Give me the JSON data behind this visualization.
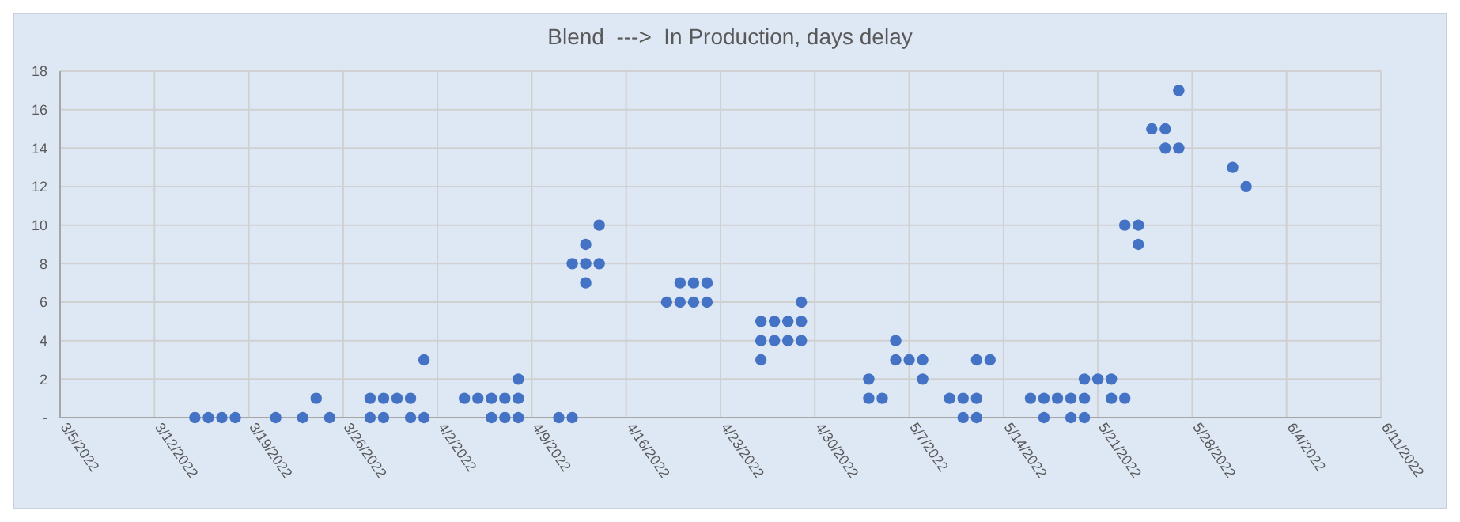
{
  "chart_data": {
    "type": "scatter",
    "title": "Blend  --->  In Production, days delay",
    "series": [
      {
        "color": "#4472c4",
        "x": [
          "2022-03-15",
          "2022-03-16",
          "2022-03-17",
          "2022-03-18",
          "2022-03-21",
          "2022-03-23",
          "2022-03-24",
          "2022-03-25",
          "2022-03-28",
          "2022-03-28",
          "2022-03-29",
          "2022-03-29",
          "2022-03-30",
          "2022-03-31",
          "2022-03-31",
          "2022-04-01",
          "2022-04-01",
          "2022-04-04",
          "2022-04-05",
          "2022-04-06",
          "2022-04-06",
          "2022-04-07",
          "2022-04-07",
          "2022-04-08",
          "2022-04-08",
          "2022-04-08",
          "2022-04-11",
          "2022-04-12",
          "2022-04-12",
          "2022-04-13",
          "2022-04-13",
          "2022-04-13",
          "2022-04-14",
          "2022-04-14",
          "2022-04-19",
          "2022-04-20",
          "2022-04-20",
          "2022-04-21",
          "2022-04-21",
          "2022-04-22",
          "2022-04-22",
          "2022-04-26",
          "2022-04-26",
          "2022-04-26",
          "2022-04-27",
          "2022-04-27",
          "2022-04-28",
          "2022-04-28",
          "2022-04-29",
          "2022-04-29",
          "2022-04-29",
          "2022-05-04",
          "2022-05-04",
          "2022-05-05",
          "2022-05-06",
          "2022-05-06",
          "2022-05-07",
          "2022-05-08",
          "2022-05-08",
          "2022-05-10",
          "2022-05-11",
          "2022-05-11",
          "2022-05-12",
          "2022-05-12",
          "2022-05-12",
          "2022-05-13",
          "2022-05-16",
          "2022-05-17",
          "2022-05-17",
          "2022-05-18",
          "2022-05-19",
          "2022-05-19",
          "2022-05-20",
          "2022-05-20",
          "2022-05-20",
          "2022-05-21",
          "2022-05-22",
          "2022-05-22",
          "2022-05-23",
          "2022-05-23",
          "2022-05-24",
          "2022-05-24",
          "2022-05-25",
          "2022-05-26",
          "2022-05-26",
          "2022-05-27",
          "2022-05-27",
          "2022-05-31",
          "2022-06-01"
        ],
        "values": [
          0,
          0,
          0,
          0,
          0,
          0,
          1,
          0,
          1,
          0,
          1,
          0,
          1,
          1,
          0,
          3,
          0,
          1,
          1,
          1,
          0,
          1,
          0,
          2,
          1,
          0,
          0,
          0,
          8,
          9,
          8,
          7,
          10,
          8,
          6,
          7,
          6,
          7,
          6,
          7,
          6,
          5,
          4,
          3,
          5,
          4,
          5,
          4,
          6,
          5,
          4,
          2,
          1,
          1,
          4,
          3,
          3,
          3,
          2,
          1,
          1,
          0,
          3,
          1,
          0,
          3,
          1,
          1,
          0,
          1,
          1,
          0,
          2,
          1,
          0,
          2,
          2,
          1,
          10,
          1,
          10,
          9,
          15,
          15,
          14,
          17,
          14,
          13,
          12
        ]
      }
    ],
    "xlim": [
      "2022-03-05",
      "2022-06-11"
    ],
    "xticks": [
      {
        "value": "2022-03-05",
        "label": "3/5/2022"
      },
      {
        "value": "2022-03-12",
        "label": "3/12/2022"
      },
      {
        "value": "2022-03-19",
        "label": "3/19/2022"
      },
      {
        "value": "2022-03-26",
        "label": "3/26/2022"
      },
      {
        "value": "2022-04-02",
        "label": "4/2/2022"
      },
      {
        "value": "2022-04-09",
        "label": "4/9/2022"
      },
      {
        "value": "2022-04-16",
        "label": "4/16/2022"
      },
      {
        "value": "2022-04-23",
        "label": "4/23/2022"
      },
      {
        "value": "2022-04-30",
        "label": "4/30/2022"
      },
      {
        "value": "2022-05-07",
        "label": "5/7/2022"
      },
      {
        "value": "2022-05-14",
        "label": "5/14/2022"
      },
      {
        "value": "2022-05-21",
        "label": "5/21/2022"
      },
      {
        "value": "2022-05-28",
        "label": "5/28/2022"
      },
      {
        "value": "2022-06-04",
        "label": "6/4/2022"
      },
      {
        "value": "2022-06-11",
        "label": "6/11/2022"
      }
    ],
    "ylim": [
      0,
      18
    ],
    "yticks": [
      {
        "value": 0,
        "label": "-"
      },
      2,
      4,
      6,
      8,
      10,
      12,
      14,
      16,
      18
    ],
    "grid": true,
    "marker": "circle"
  }
}
